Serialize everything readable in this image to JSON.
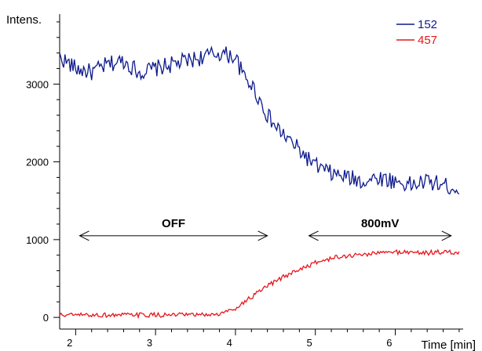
{
  "chart_data": {
    "type": "line",
    "title": "",
    "ylabel": "Intens.",
    "xlabel": "Time [min]",
    "xlim": [
      1.8,
      6.85
    ],
    "ylim": [
      -150,
      3900
    ],
    "x_ticks": [
      2,
      3,
      4,
      5,
      6
    ],
    "x_tick_labels": [
      "2",
      "3",
      "4",
      "5",
      "6"
    ],
    "y_ticks": [
      0,
      1000,
      2000,
      3000
    ],
    "y_tick_labels": [
      "0",
      "1000",
      "2000",
      "3000"
    ],
    "y_minor_step": 200,
    "x_minor_step": 0.2,
    "grid": false,
    "legend_position": "top-right",
    "series": [
      {
        "name": "152",
        "color": "#0d1a8c",
        "x": [
          1.8,
          2.0,
          2.2,
          2.4,
          2.6,
          2.8,
          3.0,
          3.2,
          3.4,
          3.6,
          3.8,
          4.0,
          4.1,
          4.2,
          4.3,
          4.4,
          4.5,
          4.6,
          4.7,
          4.8,
          4.9,
          5.0,
          5.2,
          5.4,
          5.6,
          5.8,
          6.0,
          6.2,
          6.4,
          6.6,
          6.8
        ],
        "y": [
          3350,
          3200,
          3150,
          3250,
          3300,
          3150,
          3200,
          3250,
          3300,
          3350,
          3400,
          3350,
          3100,
          3000,
          2800,
          2600,
          2450,
          2350,
          2250,
          2150,
          2050,
          1950,
          1850,
          1800,
          1750,
          1800,
          1750,
          1700,
          1750,
          1700,
          1650
        ],
        "noise_amplitude": 110
      },
      {
        "name": "457",
        "color": "#e8161c",
        "x": [
          1.8,
          2.0,
          2.5,
          3.0,
          3.5,
          3.8,
          4.0,
          4.2,
          4.4,
          4.6,
          4.8,
          5.0,
          5.2,
          5.4,
          5.6,
          5.8,
          6.0,
          6.2,
          6.4,
          6.6,
          6.8
        ],
        "y": [
          30,
          30,
          30,
          30,
          30,
          40,
          120,
          260,
          400,
          520,
          620,
          700,
          760,
          790,
          810,
          830,
          840,
          840,
          830,
          840,
          830
        ],
        "noise_amplitude": 30
      }
    ],
    "annotations": [
      {
        "label": "OFF",
        "x_start": 2.05,
        "x_end": 4.4,
        "y": 1050
      },
      {
        "label": "800mV",
        "x_start": 4.92,
        "x_end": 6.7,
        "y": 1050
      }
    ]
  }
}
